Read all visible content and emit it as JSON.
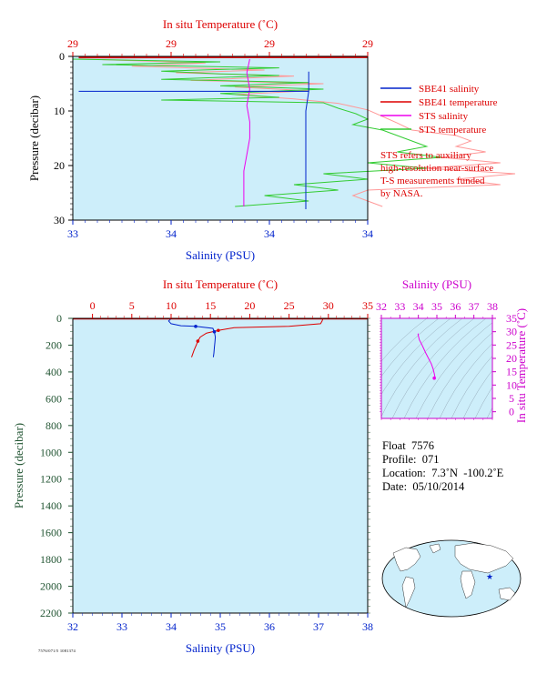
{
  "colors": {
    "plot_bg": "#cdeefa",
    "salinity": "#0022cc",
    "temperature": "#dd0000",
    "sts_salinity": "#ee00ee",
    "sts_temperature": "#33cc33",
    "sts_temperature_pink": "#ff9999",
    "pressure_axis": "#225533",
    "ts_axis": "#cc00cc",
    "ts_contours": "#8899aa"
  },
  "float_info": {
    "float": "Float  7576",
    "profile": "Profile:  071",
    "location": "Location:  7.3˚N  -100.2˚E",
    "date": "Date:  05/10/2014"
  },
  "legend": {
    "items": [
      {
        "label": "SBE41 salinity",
        "color": "#0022cc"
      },
      {
        "label": "SBE41 temperature",
        "color": "#dd0000"
      },
      {
        "label": "STS salinity",
        "color": "#ee00ee"
      },
      {
        "label": "STS temperature",
        "color": "#33cc33"
      }
    ],
    "note": [
      "STS refers to auxiliary",
      "high-resolution near-surface",
      "T-S measurements funded",
      "by NASA."
    ]
  },
  "stamp_text": "7576/071/5 1081374",
  "chart_data": [
    {
      "type": "line",
      "name": "near-surface profile",
      "title": "",
      "top_axis_label": "In situ Temperature (˚C)",
      "top_ticks": [
        "29",
        "29",
        "29",
        "29"
      ],
      "bottom_axis_label": "Salinity (PSU)",
      "bottom_ticks": [
        "33",
        "34",
        "34",
        "34"
      ],
      "ylabel": "Pressure (decibar)",
      "y_ticks": [
        "0",
        "10",
        "20",
        "30"
      ],
      "xlim_salinity": [
        33,
        34
      ],
      "ylim_pressure": [
        0,
        30
      ],
      "series": [
        {
          "name": "SBE41 salinity",
          "color": "#0022cc",
          "points": [
            [
              33.8,
              2.8
            ],
            [
              33.8,
              6.4
            ],
            [
              33.02,
              6.4
            ],
            [
              33.8,
              6.4
            ],
            [
              33.79,
              10
            ],
            [
              33.79,
              15
            ],
            [
              33.79,
              20
            ],
            [
              33.79,
              25
            ],
            [
              33.79,
              28
            ]
          ]
        },
        {
          "name": "SBE41 temperature",
          "color": "#dd0000",
          "points": [
            [
              34.0,
              0.1
            ],
            [
              33.02,
              0.15
            ]
          ]
        },
        {
          "name": "STS salinity",
          "color": "#ee00ee",
          "points": [
            [
              33.6,
              0.5
            ],
            [
              33.59,
              3
            ],
            [
              33.6,
              6
            ],
            [
              33.59,
              9
            ],
            [
              33.6,
              12
            ],
            [
              33.6,
              15
            ],
            [
              33.59,
              18
            ],
            [
              33.58,
              21
            ],
            [
              33.58,
              24
            ],
            [
              33.58,
              27.5
            ]
          ]
        },
        {
          "name": "STS temperature",
          "color": "#33cc33",
          "points": [
            [
              33.0,
              0.5
            ],
            [
              33.5,
              1.0
            ],
            [
              33.1,
              1.5
            ],
            [
              33.7,
              2.1
            ],
            [
              33.3,
              2.7
            ],
            [
              33.5,
              3.2
            ],
            [
              33.7,
              3.5
            ],
            [
              33.3,
              4.2
            ],
            [
              33.8,
              4.8
            ],
            [
              33.5,
              5.4
            ],
            [
              33.85,
              6.0
            ],
            [
              33.5,
              6.8
            ],
            [
              33.7,
              7.5
            ],
            [
              33.3,
              8.0
            ],
            [
              33.85,
              8.5
            ],
            [
              33.9,
              9.5
            ],
            [
              33.96,
              10.5
            ],
            [
              34.0,
              11.5
            ],
            [
              33.95,
              12.5
            ],
            [
              34.05,
              13.5
            ],
            [
              34.1,
              14.5
            ],
            [
              34.15,
              15.5
            ],
            [
              34.2,
              16.5
            ],
            [
              34.1,
              17.5
            ],
            [
              34.25,
              18.5
            ],
            [
              34.0,
              19.5
            ],
            [
              34.2,
              20.5
            ],
            [
              33.85,
              21.5
            ],
            [
              34.0,
              22.5
            ],
            [
              33.75,
              23.5
            ],
            [
              33.9,
              24.5
            ],
            [
              33.65,
              25.5
            ],
            [
              33.8,
              26.5
            ],
            [
              33.55,
              27.5
            ]
          ]
        },
        {
          "name": "STS temperature (pink)",
          "color": "#ff9999",
          "points": [
            [
              33.1,
              0.6
            ],
            [
              33.45,
              1.2
            ],
            [
              33.2,
              1.8
            ],
            [
              33.65,
              2.5
            ],
            [
              33.35,
              3.0
            ],
            [
              33.75,
              3.6
            ],
            [
              33.4,
              4.4
            ],
            [
              33.85,
              5.0
            ],
            [
              33.55,
              5.6
            ],
            [
              33.8,
              6.3
            ],
            [
              33.55,
              7.0
            ],
            [
              33.75,
              7.8
            ],
            [
              33.9,
              8.6
            ],
            [
              34.0,
              9.8
            ],
            [
              34.05,
              11.0
            ],
            [
              34.1,
              12.2
            ],
            [
              34.15,
              13.5
            ],
            [
              34.3,
              14.5
            ],
            [
              34.35,
              15.5
            ],
            [
              34.3,
              16.5
            ],
            [
              34.4,
              17.5
            ],
            [
              34.25,
              18.5
            ],
            [
              34.45,
              19.5
            ],
            [
              34.2,
              20.5
            ],
            [
              34.5,
              21.5
            ],
            [
              34.3,
              22.5
            ],
            [
              34.45,
              23.5
            ],
            [
              34.0,
              24.5
            ],
            [
              33.95,
              25.5
            ],
            [
              34.0,
              26.5
            ],
            [
              34.05,
              27.5
            ]
          ]
        }
      ]
    },
    {
      "type": "line",
      "name": "full-depth profile",
      "title": "",
      "top_axis_label": "In situ Temperature (˚C)",
      "top_ticks": [
        "0",
        "5",
        "10",
        "15",
        "20",
        "25",
        "30",
        "35"
      ],
      "bottom_axis_label": "Salinity (PSU)",
      "bottom_ticks": [
        "32",
        "33",
        "34",
        "35",
        "36",
        "37",
        "38"
      ],
      "ylabel": "Pressure (decibar)",
      "y_ticks": [
        "0",
        "200",
        "400",
        "600",
        "800",
        "1000",
        "1200",
        "1400",
        "1600",
        "1800",
        "2000",
        "2200"
      ],
      "xlim_salinity": [
        32,
        38
      ],
      "xlim_temperature": [
        -2.5,
        35
      ],
      "ylim_pressure": [
        0,
        2200
      ],
      "series": [
        {
          "name": "SBE41 temperature",
          "color": "#dd0000",
          "points_temperature": [
            [
              29.3,
              2
            ],
            [
              29.2,
              20
            ],
            [
              29.0,
              40
            ],
            [
              25,
              60
            ],
            [
              18,
              70
            ],
            [
              16,
              90
            ],
            [
              14.5,
              110
            ],
            [
              13.7,
              140
            ],
            [
              13.4,
              170
            ],
            [
              13.2,
              200
            ],
            [
              12.9,
              240
            ],
            [
              12.6,
              290
            ]
          ]
        },
        {
          "name": "SBE41 salinity",
          "color": "#0022cc",
          "points_salinity": [
            [
              34.0,
              2
            ],
            [
              33.95,
              20
            ],
            [
              34.0,
              40
            ],
            [
              34.2,
              55
            ],
            [
              34.5,
              60
            ],
            [
              34.85,
              75
            ],
            [
              34.88,
              100
            ],
            [
              34.9,
              140
            ],
            [
              34.89,
              180
            ],
            [
              34.88,
              220
            ],
            [
              34.87,
              260
            ],
            [
              34.86,
              290
            ]
          ]
        }
      ]
    },
    {
      "type": "line",
      "name": "T-S diagram",
      "title": "Salinity (PSU)",
      "xlabel": "Salinity (PSU)",
      "ylabel": "In situ Temperature (˚C)",
      "x_ticks": [
        "32",
        "33",
        "34",
        "35",
        "36",
        "37",
        "38"
      ],
      "y_ticks": [
        "0",
        "5",
        "10",
        "15",
        "20",
        "25",
        "30",
        "35"
      ],
      "xlim": [
        32,
        38
      ],
      "ylim": [
        -2.5,
        35
      ],
      "series": [
        {
          "name": "T-S",
          "color": "#ee00ee",
          "points": [
            [
              34.0,
              29.3
            ],
            [
              33.98,
              29.0
            ],
            [
              34.05,
              27.0
            ],
            [
              34.2,
              25.0
            ],
            [
              34.4,
              22.0
            ],
            [
              34.55,
              20.0
            ],
            [
              34.7,
              18.0
            ],
            [
              34.8,
              16.0
            ],
            [
              34.85,
              14.5
            ],
            [
              34.88,
              13.5
            ],
            [
              34.9,
              13.0
            ],
            [
              34.86,
              12.6
            ]
          ]
        }
      ]
    }
  ]
}
